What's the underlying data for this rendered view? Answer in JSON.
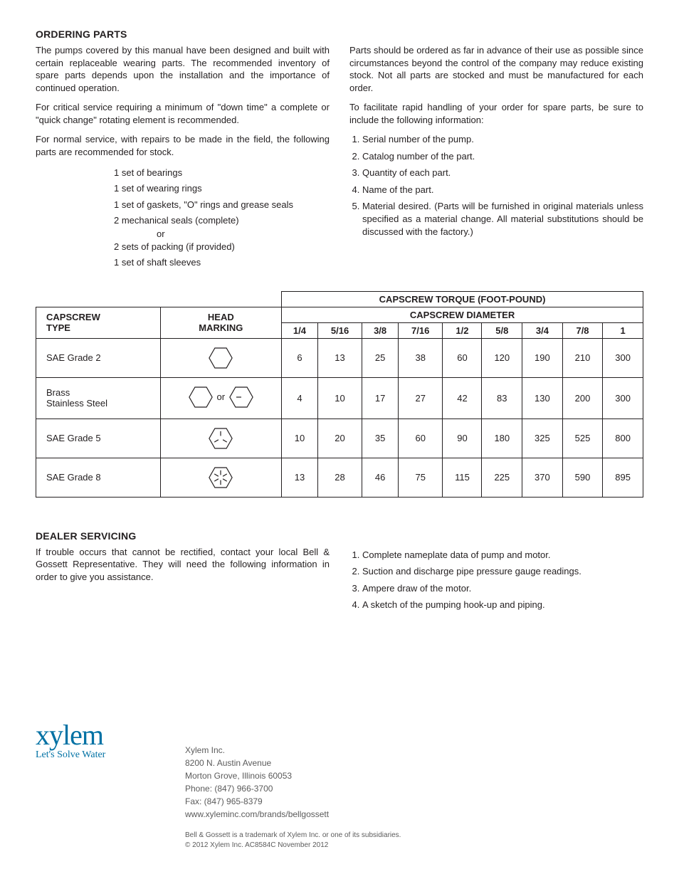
{
  "ordering": {
    "title": "ORDERING PARTS",
    "left_paras": [
      "The pumps covered by this manual have been designed and built with certain replaceable wearing parts. The recommended inventory of spare parts depends upon the installation and the importance of continued operation.",
      "For critical service requiring a minimum of \"down time\" a complete or \"quick change\" rotating element is recommended.",
      "For normal service, with repairs to be made in the field, the following parts are recommended for stock."
    ],
    "stock_items": [
      "1 set of bearings",
      "1 set of wearing rings",
      "1 set of gaskets, \"O\" rings and grease seals",
      "2 mechanical seals (complete)"
    ],
    "stock_or": "or",
    "stock_items2": [
      "2 sets of packing (if provided)",
      "1 set of shaft sleeves"
    ],
    "right_paras": [
      "Parts should be ordered as far in advance of their use as possible since circumstances beyond the control of the company may reduce existing stock. Not all parts are stocked and must be manufactured for each order.",
      "To facilitate rapid handling of your order for spare parts, be sure to include the following information:"
    ],
    "right_list": [
      "Serial number of the pump.",
      "Catalog number of the part.",
      "Quantity of each part.",
      "Name of the part.",
      "Material desired. (Parts will be furnished in original materials unless specified as a material change. All material substitutions should be discussed with the factory.)"
    ]
  },
  "torque_table": {
    "top_header": "CAPSCREW TORQUE (FOOT-POUND)",
    "sub_header": "CAPSCREW DIAMETER",
    "col1_header": "CAPSCREW\nTYPE",
    "col2_header": "HEAD\nMARKING",
    "diam_cols": [
      "1/4",
      "5/16",
      "3/8",
      "7/16",
      "1/2",
      "5/8",
      "3/4",
      "7/8",
      "1"
    ],
    "rows": [
      {
        "type": "SAE Grade 2",
        "head": "hex_plain",
        "vals": [
          "6",
          "13",
          "25",
          "38",
          "60",
          "120",
          "190",
          "210",
          "300"
        ]
      },
      {
        "type": "Brass\nStainless Steel",
        "head": "hex_or_onedash",
        "vals": [
          "4",
          "10",
          "17",
          "27",
          "42",
          "83",
          "130",
          "200",
          "300"
        ]
      },
      {
        "type": "SAE Grade 5",
        "head": "hex_3dash",
        "vals": [
          "10",
          "20",
          "35",
          "60",
          "90",
          "180",
          "325",
          "525",
          "800"
        ]
      },
      {
        "type": "SAE Grade 8",
        "head": "hex_6dash",
        "vals": [
          "13",
          "28",
          "46",
          "75",
          "115",
          "225",
          "370",
          "590",
          "895"
        ]
      }
    ],
    "head_or_label": "or",
    "cell_border_color": "#231f20",
    "font_size": 13
  },
  "dealer": {
    "title": "DEALER SERVICING",
    "left_para": "If trouble occurs that cannot be rectified, contact your local Bell & Gossett Representative. They will need the following information in order to give you assistance.",
    "right_list": [
      "Complete nameplate data of pump and motor.",
      "Suction and discharge pipe pressure gauge readings.",
      "Ampere draw of the motor.",
      "A sketch of the pumping hook-up and piping."
    ]
  },
  "footer": {
    "logo_main": "xylem",
    "logo_tag": "Let's Solve Water",
    "company": "Xylem Inc.",
    "addr1": "8200 N. Austin Avenue",
    "addr2": "Morton Grove, Illinois 60053",
    "phone": "Phone: (847) 966-3700",
    "fax": "Fax: (847) 965-8379",
    "url": "www.xyleminc.com/brands/bellgossett",
    "legal1": "Bell & Gossett is a trademark of Xylem Inc. or one of its subsidiaries.",
    "legal2": "© 2012 Xylem Inc.    AC8584C    November 2012",
    "brand_color": "#0071a4"
  }
}
